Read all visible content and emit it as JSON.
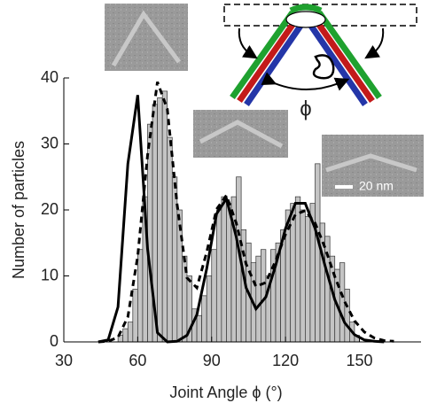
{
  "chart_data": {
    "type": "histogram",
    "xlabel": "Joint Angle ϕ (°)",
    "ylabel": "Number of particles",
    "annotations": [
      "ϕ",
      "20 nm"
    ],
    "bins": [
      50,
      52,
      54,
      56,
      58,
      60,
      62,
      64,
      66,
      68,
      70,
      72,
      74,
      76,
      78,
      80,
      82,
      84,
      86,
      88,
      90,
      92,
      94,
      96,
      98,
      100,
      102,
      104,
      106,
      108,
      110,
      112,
      114,
      116,
      118,
      120,
      122,
      124,
      126,
      128,
      130,
      132,
      134,
      136,
      138,
      140,
      142,
      144,
      146,
      148,
      150
    ],
    "values": [
      0,
      1,
      2,
      3,
      8,
      14,
      22,
      33,
      36,
      37,
      38,
      31,
      25,
      20,
      13,
      10,
      5,
      4,
      7,
      10,
      14,
      20,
      22,
      21,
      22,
      25,
      17,
      15,
      12,
      13,
      14,
      10,
      14,
      15,
      17,
      20,
      21,
      22,
      20,
      19,
      21,
      27,
      18,
      16,
      13,
      11,
      12,
      8,
      3,
      1
    ],
    "color": "#c4c4c4",
    "fits": [
      {
        "dash": false,
        "color": "#000000",
        "x": [
          44,
          48,
          52,
          56,
          60,
          64,
          68,
          72,
          76,
          80,
          84,
          88,
          92,
          96,
          100,
          104,
          108,
          112,
          116,
          120,
          124,
          128,
          132,
          136,
          140,
          144,
          148,
          152,
          156,
          160
        ],
        "values": [
          0,
          0.3,
          5.3,
          27,
          37.4,
          14.1,
          1.4,
          0,
          0.1,
          1.0,
          4.1,
          11.1,
          19.4,
          21.7,
          15.9,
          8.2,
          5.0,
          6.8,
          11.6,
          17.2,
          21.0,
          21.0,
          17.2,
          11.6,
          6.4,
          2.9,
          1.1,
          0.3,
          0.1,
          0
        ]
      },
      {
        "dash": true,
        "color": "#000000",
        "x": [
          44,
          48,
          52,
          56,
          60,
          64,
          68,
          72,
          76,
          80,
          84,
          88,
          92,
          96,
          100,
          104,
          108,
          112,
          116,
          120,
          124,
          128,
          132,
          136,
          140,
          144,
          148,
          152,
          156,
          160,
          164
        ],
        "values": [
          0,
          0.1,
          0.7,
          3.8,
          13,
          28.3,
          39.4,
          35.3,
          20.8,
          9.7,
          8.2,
          13.6,
          20.1,
          22.2,
          18.0,
          11.8,
          8.4,
          9.0,
          12.3,
          16.3,
          19.3,
          19.9,
          18.0,
          14.3,
          9.9,
          6.1,
          3.2,
          1.5,
          0.6,
          0.2,
          0.1
        ]
      }
    ],
    "xlim": [
      30,
      175
    ],
    "xticks": [
      30,
      60,
      90,
      120,
      150
    ],
    "ylim": [
      0,
      40
    ],
    "yticks": [
      0,
      10,
      20,
      30,
      40
    ]
  }
}
